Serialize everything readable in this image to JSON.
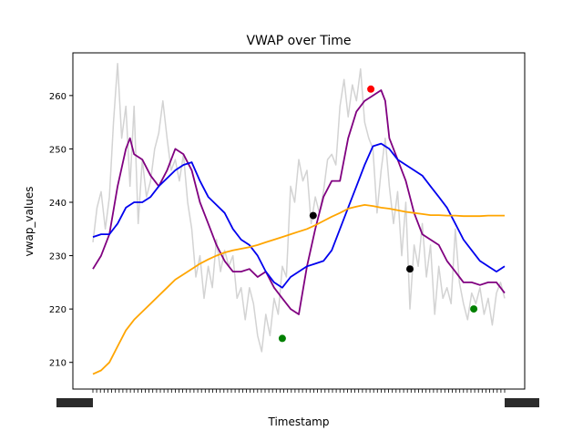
{
  "chart_data": {
    "type": "line",
    "title": "VWAP over Time",
    "xlabel": "Timestamp",
    "ylabel": "vwap_values",
    "x_range": [
      0,
      100
    ],
    "ylim": [
      205,
      268
    ],
    "yticks": [
      210,
      220,
      230,
      240,
      250,
      260
    ],
    "grid": false,
    "legend": "none",
    "x_tick_labels_overlapping": true,
    "series": [
      {
        "color": "#d3d3d3",
        "points": [
          [
            0,
            232.5
          ],
          [
            1,
            239
          ],
          [
            2,
            242
          ],
          [
            3,
            235
          ],
          [
            4,
            241
          ],
          [
            5,
            255
          ],
          [
            6,
            266
          ],
          [
            7,
            252
          ],
          [
            8,
            258
          ],
          [
            9,
            243
          ],
          [
            10,
            258
          ],
          [
            11,
            236
          ],
          [
            12,
            248
          ],
          [
            13,
            241
          ],
          [
            14,
            244
          ],
          [
            15,
            250
          ],
          [
            16,
            253
          ],
          [
            17,
            259
          ],
          [
            18,
            252
          ],
          [
            19,
            246
          ],
          [
            20,
            248
          ],
          [
            21,
            244
          ],
          [
            22,
            249
          ],
          [
            23,
            240
          ],
          [
            24,
            235
          ],
          [
            25,
            226
          ],
          [
            26,
            230
          ],
          [
            27,
            222
          ],
          [
            28,
            228
          ],
          [
            29,
            224
          ],
          [
            30,
            233
          ],
          [
            31,
            227
          ],
          [
            32,
            231
          ],
          [
            33,
            228
          ],
          [
            34,
            230
          ],
          [
            35,
            222
          ],
          [
            36,
            224
          ],
          [
            37,
            218
          ],
          [
            38,
            224
          ],
          [
            39,
            221
          ],
          [
            40,
            215
          ],
          [
            41,
            212
          ],
          [
            42,
            219
          ],
          [
            43,
            215
          ],
          [
            44,
            222
          ],
          [
            45,
            219
          ],
          [
            46,
            228
          ],
          [
            47,
            226
          ],
          [
            48,
            243
          ],
          [
            49,
            240
          ],
          [
            50,
            248
          ],
          [
            51,
            244
          ],
          [
            52,
            246
          ],
          [
            53,
            236
          ],
          [
            54,
            241
          ],
          [
            55,
            238
          ],
          [
            56,
            242
          ],
          [
            57,
            248
          ],
          [
            58,
            249
          ],
          [
            59,
            247
          ],
          [
            60,
            258
          ],
          [
            61,
            263
          ],
          [
            62,
            256
          ],
          [
            63,
            262
          ],
          [
            64,
            259
          ],
          [
            65,
            265
          ],
          [
            66,
            255
          ],
          [
            67,
            252
          ],
          [
            68,
            250
          ],
          [
            69,
            238
          ],
          [
            70,
            246
          ],
          [
            71,
            252
          ],
          [
            72,
            243
          ],
          [
            73,
            236
          ],
          [
            74,
            242
          ],
          [
            75,
            230
          ],
          [
            76,
            240
          ],
          [
            77,
            220
          ],
          [
            78,
            232
          ],
          [
            79,
            228
          ],
          [
            80,
            236
          ],
          [
            81,
            226
          ],
          [
            82,
            232
          ],
          [
            83,
            219
          ],
          [
            84,
            228
          ],
          [
            85,
            222
          ],
          [
            86,
            224
          ],
          [
            87,
            221
          ],
          [
            88,
            235
          ],
          [
            89,
            225
          ],
          [
            90,
            221
          ],
          [
            91,
            218
          ],
          [
            92,
            223
          ],
          [
            93,
            221
          ],
          [
            94,
            224
          ],
          [
            95,
            219
          ],
          [
            96,
            222
          ],
          [
            97,
            217
          ],
          [
            98,
            223
          ],
          [
            99,
            225
          ],
          [
            100,
            222
          ]
        ]
      },
      {
        "color": "#800080",
        "points": [
          [
            0,
            227.5
          ],
          [
            2,
            230
          ],
          [
            4,
            234
          ],
          [
            6,
            243
          ],
          [
            8,
            250
          ],
          [
            9,
            252
          ],
          [
            10,
            249
          ],
          [
            12,
            248
          ],
          [
            14,
            245
          ],
          [
            16,
            243
          ],
          [
            18,
            246
          ],
          [
            20,
            250
          ],
          [
            22,
            249
          ],
          [
            24,
            246
          ],
          [
            26,
            240
          ],
          [
            28,
            236
          ],
          [
            30,
            232
          ],
          [
            32,
            229
          ],
          [
            34,
            227
          ],
          [
            36,
            227
          ],
          [
            38,
            227.5
          ],
          [
            40,
            226
          ],
          [
            42,
            227
          ],
          [
            44,
            224
          ],
          [
            46,
            222
          ],
          [
            48,
            220
          ],
          [
            50,
            219
          ],
          [
            52,
            228
          ],
          [
            54,
            235
          ],
          [
            56,
            241
          ],
          [
            58,
            244
          ],
          [
            60,
            244
          ],
          [
            62,
            252
          ],
          [
            64,
            257
          ],
          [
            66,
            259
          ],
          [
            68,
            260
          ],
          [
            70,
            261
          ],
          [
            71,
            259
          ],
          [
            72,
            252
          ],
          [
            74,
            248
          ],
          [
            76,
            244
          ],
          [
            78,
            238
          ],
          [
            80,
            234
          ],
          [
            82,
            233
          ],
          [
            84,
            232
          ],
          [
            86,
            229
          ],
          [
            88,
            227
          ],
          [
            90,
            225
          ],
          [
            92,
            225
          ],
          [
            94,
            224.5
          ],
          [
            96,
            225
          ],
          [
            98,
            225
          ],
          [
            100,
            223
          ]
        ]
      },
      {
        "color": "#0000ee",
        "points": [
          [
            0,
            233.5
          ],
          [
            2,
            234
          ],
          [
            4,
            234
          ],
          [
            6,
            236
          ],
          [
            8,
            239
          ],
          [
            10,
            240
          ],
          [
            12,
            240
          ],
          [
            14,
            241
          ],
          [
            16,
            243
          ],
          [
            18,
            244.5
          ],
          [
            20,
            246
          ],
          [
            22,
            247
          ],
          [
            24,
            247.5
          ],
          [
            26,
            244
          ],
          [
            28,
            241
          ],
          [
            30,
            239.5
          ],
          [
            32,
            238
          ],
          [
            34,
            235
          ],
          [
            36,
            233
          ],
          [
            38,
            232
          ],
          [
            40,
            230
          ],
          [
            42,
            227
          ],
          [
            44,
            225
          ],
          [
            46,
            224
          ],
          [
            48,
            226
          ],
          [
            50,
            227
          ],
          [
            52,
            228
          ],
          [
            54,
            228.5
          ],
          [
            56,
            229
          ],
          [
            58,
            231
          ],
          [
            60,
            235
          ],
          [
            62,
            239
          ],
          [
            64,
            243
          ],
          [
            66,
            247
          ],
          [
            68,
            250.5
          ],
          [
            70,
            251
          ],
          [
            72,
            250
          ],
          [
            74,
            248
          ],
          [
            76,
            247
          ],
          [
            78,
            246
          ],
          [
            80,
            245
          ],
          [
            82,
            243
          ],
          [
            84,
            241
          ],
          [
            86,
            239
          ],
          [
            88,
            236
          ],
          [
            90,
            233
          ],
          [
            92,
            231
          ],
          [
            94,
            229
          ],
          [
            96,
            228
          ],
          [
            98,
            227
          ],
          [
            100,
            228
          ]
        ]
      },
      {
        "color": "#ffa500",
        "points": [
          [
            0,
            207.8
          ],
          [
            2,
            208.5
          ],
          [
            4,
            210
          ],
          [
            6,
            213
          ],
          [
            8,
            216
          ],
          [
            10,
            218
          ],
          [
            12,
            219.5
          ],
          [
            14,
            221
          ],
          [
            16,
            222.5
          ],
          [
            18,
            224
          ],
          [
            20,
            225.5
          ],
          [
            22,
            226.5
          ],
          [
            24,
            227.5
          ],
          [
            26,
            228.5
          ],
          [
            28,
            229.3
          ],
          [
            30,
            230
          ],
          [
            32,
            230.6
          ],
          [
            34,
            231
          ],
          [
            36,
            231.3
          ],
          [
            38,
            231.6
          ],
          [
            40,
            232
          ],
          [
            42,
            232.5
          ],
          [
            44,
            233
          ],
          [
            46,
            233.5
          ],
          [
            48,
            234
          ],
          [
            50,
            234.5
          ],
          [
            52,
            235
          ],
          [
            54,
            235.7
          ],
          [
            56,
            236.5
          ],
          [
            58,
            237.3
          ],
          [
            60,
            238
          ],
          [
            62,
            238.8
          ],
          [
            64,
            239.2
          ],
          [
            66,
            239.5
          ],
          [
            68,
            239.3
          ],
          [
            70,
            239
          ],
          [
            72,
            238.8
          ],
          [
            74,
            238.5
          ],
          [
            76,
            238.2
          ],
          [
            78,
            238
          ],
          [
            80,
            237.8
          ],
          [
            82,
            237.6
          ],
          [
            84,
            237.6
          ],
          [
            86,
            237.5
          ],
          [
            88,
            237.5
          ],
          [
            90,
            237.4
          ],
          [
            92,
            237.4
          ],
          [
            94,
            237.4
          ],
          [
            96,
            237.5
          ],
          [
            98,
            237.5
          ],
          [
            100,
            237.5
          ]
        ]
      }
    ],
    "markers": [
      {
        "x": 67.5,
        "y": 261.2,
        "color": "#ff0000"
      },
      {
        "x": 53.5,
        "y": 237.5,
        "color": "#000000"
      },
      {
        "x": 77,
        "y": 227.5,
        "color": "#000000"
      },
      {
        "x": 46,
        "y": 214.5,
        "color": "#008000"
      },
      {
        "x": 92.5,
        "y": 220,
        "color": "#008000"
      }
    ]
  }
}
